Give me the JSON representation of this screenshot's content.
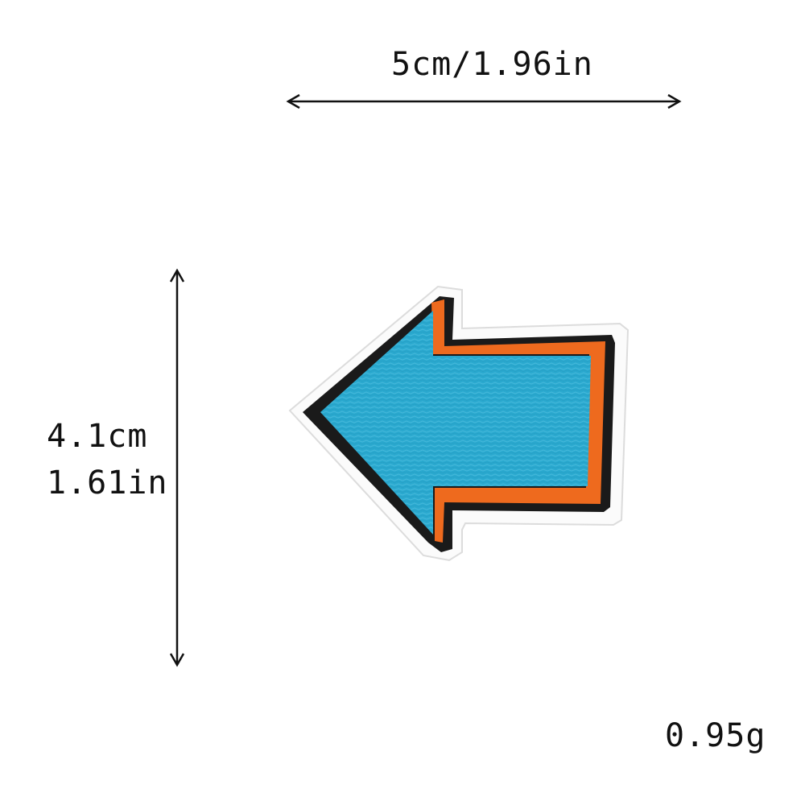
{
  "dimensions": {
    "width_label": "5cm/1.96in",
    "height_cm_label": "4.1cm",
    "height_in_label": "1.61in"
  },
  "weight_label": "0.95g",
  "patch": {
    "subject": "left-arrow-embroidered-patch",
    "colors": {
      "fill": "#2aa9cf",
      "outline": "#1a1a1a",
      "shadow": "#ee6a1e",
      "backing": "#ffffff"
    }
  }
}
